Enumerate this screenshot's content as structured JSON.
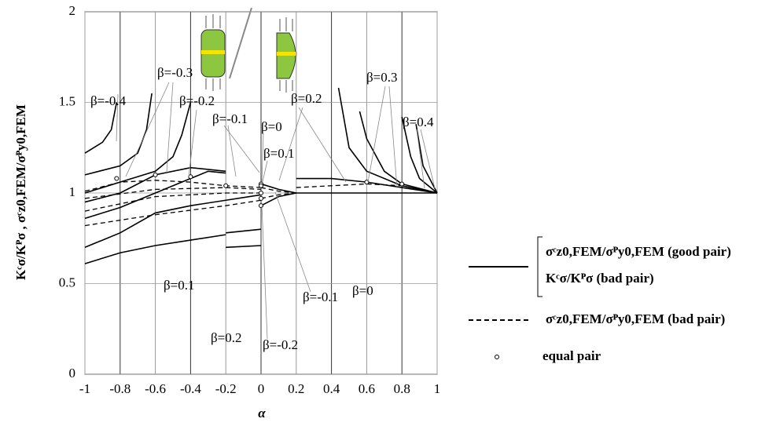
{
  "chart_data": {
    "type": "line",
    "xlabel": "α",
    "ylabel": "Kᶜσ/Kᴾσ , σᶜz0,FEM/σᴾy0,FEM",
    "xlim": [
      -1,
      1
    ],
    "xticks": [
      -1,
      -0.8,
      -0.6,
      -0.4,
      -0.2,
      0,
      0.2,
      0.4,
      0.6,
      0.8,
      1
    ],
    "ylim": [
      0,
      2
    ],
    "yticks": [
      0,
      0.5,
      1,
      1.5,
      2
    ],
    "grid": true,
    "series": [
      {
        "style": "solid",
        "color": "#000000",
        "x": [
          -1,
          -0.9,
          -0.85,
          -0.82
        ],
        "values": [
          1.22,
          1.28,
          1.35,
          1.5
        ]
      },
      {
        "style": "solid",
        "color": "#000000",
        "x": [
          -1,
          -0.8,
          -0.7,
          -0.65,
          -0.62
        ],
        "values": [
          1.1,
          1.15,
          1.22,
          1.35,
          1.55
        ]
      },
      {
        "style": "solid",
        "color": "#000000",
        "x": [
          -1,
          -0.8,
          -0.6,
          -0.5,
          -0.45,
          -0.4
        ],
        "values": [
          1.0,
          1.06,
          1.12,
          1.2,
          1.32,
          1.5
        ]
      },
      {
        "style": "solid",
        "color": "#000000",
        "x": [
          -1,
          -0.8,
          -0.6,
          -0.4,
          -0.2
        ],
        "values": [
          0.95,
          1.0,
          1.1,
          1.14,
          1.12
        ]
      },
      {
        "style": "solid",
        "color": "#000000",
        "x": [
          -1,
          -0.8,
          -0.6,
          -0.4,
          -0.3,
          -0.2
        ],
        "values": [
          0.86,
          0.92,
          1.0,
          1.08,
          1.12,
          1.11
        ]
      },
      {
        "style": "solid",
        "color": "#000000",
        "x": [
          -1,
          -0.8,
          -0.6,
          -0.4,
          -0.2,
          0
        ],
        "values": [
          0.7,
          0.78,
          0.89,
          0.93,
          0.96,
          0.99
        ]
      },
      {
        "style": "solid",
        "color": "#000000",
        "x": [
          -1,
          -0.8,
          -0.6,
          -0.4,
          -0.2
        ],
        "values": [
          0.61,
          0.67,
          0.71,
          0.74,
          0.77
        ]
      },
      {
        "style": "solid",
        "color": "#000000",
        "x": [
          -0.2,
          0
        ],
        "values": [
          0.78,
          0.8
        ]
      },
      {
        "style": "solid",
        "color": "#000000",
        "x": [
          -0.2,
          0
        ],
        "values": [
          0.7,
          0.71
        ]
      },
      {
        "style": "dashed",
        "color": "#000000",
        "x": [
          -1,
          -0.8,
          -0.6,
          -0.4,
          -0.2,
          0
        ],
        "values": [
          1.01,
          1.06,
          1.07,
          1.06,
          1.04,
          1.03
        ]
      },
      {
        "style": "dashed",
        "color": "#000000",
        "x": [
          -1,
          -0.6,
          -0.2,
          0
        ],
        "values": [
          0.97,
          1.02,
          1.03,
          1.02
        ]
      },
      {
        "style": "dashed",
        "color": "#000000",
        "x": [
          -1,
          -0.6,
          -0.2,
          0
        ],
        "values": [
          0.9,
          0.98,
          1.0,
          1.0
        ]
      },
      {
        "style": "dashed",
        "color": "#000000",
        "x": [
          -1,
          -0.6,
          -0.2,
          0
        ],
        "values": [
          0.82,
          0.88,
          0.93,
          0.96
        ]
      },
      {
        "style": "solid",
        "color": "#000000",
        "x": [
          0,
          0.1,
          0.2
        ],
        "values": [
          0.93,
          0.98,
          1.0
        ]
      },
      {
        "style": "solid",
        "color": "#000000",
        "x": [
          0,
          0.1,
          0.2
        ],
        "values": [
          1.05,
          1.02,
          1.0
        ]
      },
      {
        "style": "dashed",
        "color": "#000000",
        "x": [
          0,
          0.1,
          0.2
        ],
        "values": [
          1.03,
          1.01,
          1.0
        ]
      },
      {
        "style": "dashed",
        "color": "#000000",
        "x": [
          0,
          0.1,
          0.2
        ],
        "values": [
          0.97,
          0.99,
          1.0
        ]
      },
      {
        "style": "solid",
        "color": "#000000",
        "x": [
          0.44,
          0.5,
          0.6,
          0.8,
          1
        ],
        "values": [
          1.58,
          1.25,
          1.12,
          1.04,
          1.0
        ]
      },
      {
        "style": "solid",
        "color": "#000000",
        "x": [
          0.56,
          0.6,
          0.7,
          0.8,
          1
        ],
        "values": [
          1.45,
          1.3,
          1.12,
          1.05,
          1.0
        ]
      },
      {
        "style": "solid",
        "color": "#000000",
        "x": [
          0.8,
          0.85,
          0.9,
          1
        ],
        "values": [
          1.42,
          1.2,
          1.08,
          1.0
        ]
      },
      {
        "style": "solid",
        "color": "#000000",
        "x": [
          0.88,
          0.92,
          1
        ],
        "values": [
          1.38,
          1.15,
          1.0
        ]
      },
      {
        "style": "solid",
        "color": "#000000",
        "x": [
          0.2,
          0.4,
          0.6,
          0.8,
          1
        ],
        "values": [
          1.08,
          1.08,
          1.06,
          1.03,
          1.0
        ]
      },
      {
        "style": "dashed",
        "color": "#000000",
        "x": [
          0.2,
          0.6,
          0.8,
          1
        ],
        "values": [
          1.03,
          1.05,
          1.04,
          1.0
        ]
      },
      {
        "style": "solid",
        "color": "#000000",
        "x": [
          0.2,
          1
        ],
        "values": [
          1.0,
          1.0
        ]
      },
      {
        "style": "marker",
        "color": "#000000",
        "x": [
          -0.82,
          -0.6,
          -0.4,
          -0.2,
          0,
          0,
          0,
          0,
          0,
          0.6,
          0.8
        ],
        "values": [
          1.08,
          1.1,
          1.09,
          1.04,
          1.05,
          1.04,
          1.0,
          0.97,
          0.93,
          1.06,
          1.05
        ]
      }
    ],
    "annotations": [
      "β=-0.4",
      "β=-0.3",
      "β=-0.2",
      "β=-0.1",
      "β=0",
      "β=0.1",
      "β=0.1",
      "β=0.2",
      "β=-0.2",
      "β=-0.1",
      "β=0",
      "β=0.2",
      "β=0.3",
      "β=0.4"
    ],
    "legend": [
      {
        "style": "solid",
        "label": "σᶜz0,FEM/σᴾy0,FEM (good pair)",
        "label2": "Kᶜσ/Kᴾσ (bad pair)"
      },
      {
        "style": "dashed",
        "label": "σᶜz0,FEM/σᴾy0,FEM (bad pair)"
      },
      {
        "style": "marker",
        "label": "equal pair"
      }
    ]
  }
}
